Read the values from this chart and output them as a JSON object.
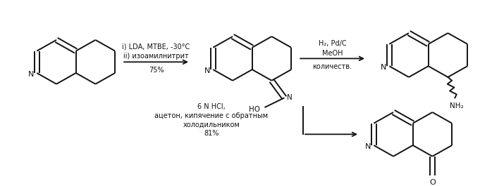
{
  "bg_color": "#ffffff",
  "line_color": "#111111",
  "arrow_color": "#111111",
  "figsize": [
    6.98,
    2.65
  ],
  "dpi": 100,
  "arrow1_label_line1": "i) LDA, MTBE, -30°C",
  "arrow1_label_line2": "ii) изоамилнитрит",
  "arrow1_label_line3": "75%",
  "arrow2_label_line1": "H₂, Pd/C",
  "arrow2_label_line2": "MeOH",
  "arrow2_label_line3": "количеств.",
  "arrow3_label_line1": "6 N HCl,",
  "arrow3_label_line2": "ацетон, кипячение с обратным",
  "arrow3_label_line3": "холодильником",
  "arrow3_label_line4": "81%",
  "label_NH2": "NH₂",
  "label_O": "O",
  "label_HO": "HO",
  "label_N_atom": "N"
}
